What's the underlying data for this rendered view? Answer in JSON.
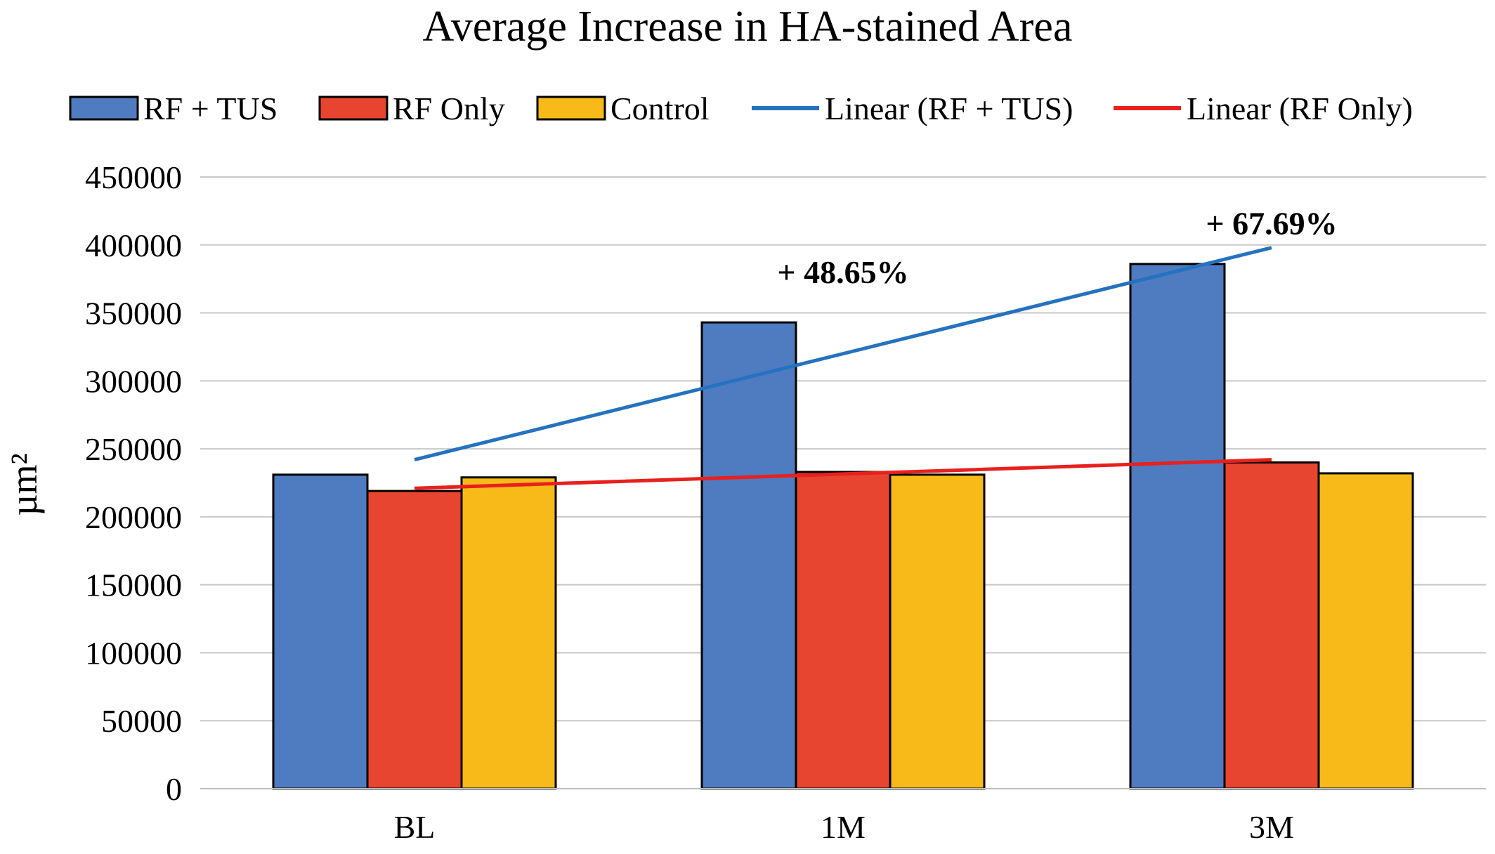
{
  "chart_data": {
    "type": "bar",
    "title": "Average Increase in HA-stained Area",
    "ylabel": "µm²",
    "xlabel": "",
    "categories": [
      "BL",
      "1M",
      "3M"
    ],
    "ylim": [
      0,
      450000
    ],
    "yticks": [
      0,
      50000,
      100000,
      150000,
      200000,
      250000,
      300000,
      350000,
      400000,
      450000
    ],
    "ytick_labels": [
      "0",
      "50000",
      "100000",
      "150000",
      "200000",
      "250000",
      "300000",
      "350000",
      "400000",
      "450000"
    ],
    "grid": true,
    "legend_position": "top",
    "series": [
      {
        "name": "RF + TUS",
        "kind": "bar",
        "color": "#4F7BC0",
        "values": [
          231000,
          343000,
          386000
        ]
      },
      {
        "name": "RF Only",
        "kind": "bar",
        "color": "#E84530",
        "values": [
          219000,
          233000,
          240000
        ]
      },
      {
        "name": "Control",
        "kind": "bar",
        "color": "#F7BA19",
        "values": [
          229000,
          231000,
          232000
        ]
      }
    ],
    "trendlines": [
      {
        "name": "Linear (RF + TUS)",
        "color": "#2472C0",
        "values": [
          242000,
          320000,
          398000
        ]
      },
      {
        "name": "Linear (RF Only)",
        "color": "#E8201E",
        "values": [
          221000,
          231500,
          242000
        ]
      }
    ],
    "annotations": [
      {
        "text": "+ 48.65%",
        "category": "1M",
        "y": 372000
      },
      {
        "text": "+ 67.69%",
        "category": "3M",
        "y": 408000
      }
    ]
  }
}
